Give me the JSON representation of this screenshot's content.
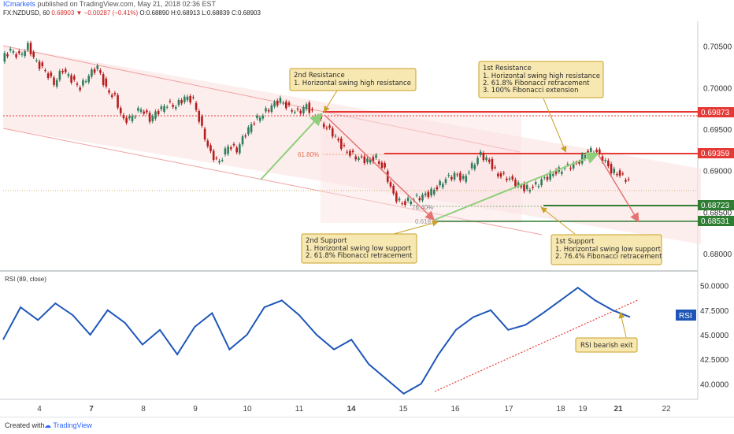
{
  "header": {
    "publisher": "ICmarkets",
    "published_text": "published on TradingView.com, May 21, 2018 02:36 EST",
    "symbol": "FX:NZDUSD, 60",
    "last": "0.68903",
    "change": "−0.00287 (−0.41%)",
    "o": "O:0.68890",
    "h": "H:0.68913",
    "l": "L:0.68839",
    "c": "C:0.68903"
  },
  "footer": {
    "created": "Created with",
    "brand": "TradingView"
  },
  "chart_data": [
    {
      "type": "candlestick",
      "panel": "price",
      "ylim": [
        0.678,
        0.708
      ],
      "y_ticks": [
        "0.70500",
        "0.70000",
        "0.69500",
        "0.69000",
        "0.68500",
        "0.68000"
      ],
      "y_tick_values": [
        0.705,
        0.7,
        0.695,
        0.69,
        0.685,
        0.68
      ],
      "x_ticks": [
        "4",
        "7",
        "8",
        "9",
        "10",
        "11",
        "14",
        "15",
        "16",
        "17",
        "18",
        "19",
        "21",
        "22"
      ],
      "close_path": [
        [
          0,
          0.7035
        ],
        [
          2,
          0.7045
        ],
        [
          4,
          0.7038
        ],
        [
          6,
          0.705
        ],
        [
          8,
          0.703
        ],
        [
          10,
          0.702
        ],
        [
          12,
          0.7005
        ],
        [
          14,
          0.7022
        ],
        [
          16,
          0.701
        ],
        [
          18,
          0.7
        ],
        [
          20,
          0.7015
        ],
        [
          22,
          0.7025
        ],
        [
          24,
          0.6998
        ],
        [
          26,
          0.6988
        ],
        [
          28,
          0.696
        ],
        [
          30,
          0.6965
        ],
        [
          32,
          0.6975
        ],
        [
          34,
          0.6962
        ],
        [
          36,
          0.6972
        ],
        [
          38,
          0.698
        ],
        [
          40,
          0.6978
        ],
        [
          42,
          0.6988
        ],
        [
          44,
          0.6985
        ],
        [
          46,
          0.695
        ],
        [
          48,
          0.692
        ],
        [
          50,
          0.691
        ],
        [
          52,
          0.693
        ],
        [
          54,
          0.6925
        ],
        [
          56,
          0.6945
        ],
        [
          58,
          0.696
        ],
        [
          60,
          0.6968
        ],
        [
          62,
          0.6978
        ],
        [
          64,
          0.6985
        ],
        [
          66,
          0.6975
        ],
        [
          68,
          0.697
        ],
        [
          70,
          0.6978
        ],
        [
          72,
          0.6965
        ],
        [
          74,
          0.6955
        ],
        [
          76,
          0.6945
        ],
        [
          78,
          0.693
        ],
        [
          80,
          0.692
        ],
        [
          82,
          0.6915
        ],
        [
          84,
          0.6912
        ],
        [
          86,
          0.6915
        ],
        [
          88,
          0.69
        ],
        [
          90,
          0.687
        ],
        [
          92,
          0.686
        ],
        [
          94,
          0.6865
        ],
        [
          96,
          0.6868
        ],
        [
          98,
          0.6872
        ],
        [
          100,
          0.688
        ],
        [
          102,
          0.689
        ],
        [
          104,
          0.6895
        ],
        [
          106,
          0.689
        ],
        [
          108,
          0.6905
        ],
        [
          110,
          0.692
        ],
        [
          112,
          0.691
        ],
        [
          114,
          0.6895
        ],
        [
          116,
          0.6892
        ],
        [
          118,
          0.6885
        ],
        [
          120,
          0.6878
        ],
        [
          122,
          0.688
        ],
        [
          124,
          0.6888
        ],
        [
          126,
          0.6895
        ],
        [
          128,
          0.69
        ],
        [
          130,
          0.6905
        ],
        [
          132,
          0.6908
        ],
        [
          134,
          0.692
        ],
        [
          136,
          0.6925
        ],
        [
          138,
          0.6915
        ],
        [
          140,
          0.69
        ],
        [
          142,
          0.6895
        ],
        [
          144,
          0.6888
        ]
      ]
    },
    {
      "type": "line",
      "panel": "rsi",
      "title": "RSI (89, close)",
      "badge": "RSI",
      "ylim": [
        38.5,
        51.5
      ],
      "y_ticks": [
        "50.0000",
        "47.5000",
        "45.0000",
        "42.5000",
        "40.0000"
      ],
      "y_tick_values": [
        50,
        47.5,
        45,
        42.5,
        40
      ],
      "x": [
        0,
        4,
        8,
        12,
        16,
        20,
        24,
        28,
        32,
        36,
        40,
        44,
        48,
        52,
        56,
        60,
        64,
        68,
        72,
        76,
        80,
        84,
        88,
        92,
        96,
        100,
        104,
        108,
        112,
        116,
        120,
        124,
        128,
        132,
        136,
        140,
        144
      ],
      "values": [
        44.5,
        47.8,
        46.5,
        48.2,
        47.0,
        45.0,
        47.5,
        46.2,
        44.0,
        45.5,
        43.0,
        45.8,
        47.2,
        43.5,
        45.0,
        47.8,
        48.5,
        47.0,
        45.0,
        43.5,
        44.5,
        42.0,
        40.5,
        39.0,
        40.0,
        43.0,
        45.5,
        46.8,
        47.5,
        45.5,
        46.0,
        47.2,
        48.5,
        49.8,
        48.5,
        47.5,
        46.8
      ],
      "color": "#1e56b8",
      "annotation": "RSI bearish exit"
    }
  ],
  "levels": {
    "resistance_2": "0.69873",
    "resistance_1": "0.69359",
    "support_1": "0.68723",
    "support_2": "0.68531",
    "fib_618": "61.80%",
    "fib_764": "76.40%",
    "fib_618_low": "0.618"
  },
  "annotations": {
    "r2_title": "2nd Resistance",
    "r2_line1": "1. Horizontal swing high resistance",
    "r1_title": "1st Resistance",
    "r1_line1": "1. Horizontal swing high resistance",
    "r1_line2": "2. 61.8% Fibonacci retracement",
    "r1_line3": "3. 100% Fibonacci extension",
    "s2_title": "2nd Support",
    "s2_line1": "1. Horizontal swing low support",
    "s2_line2": "2. 61.8% Fibonacci retracement",
    "s1_title": "1st Support",
    "s1_line1": "1. Horizontal swing low support",
    "s1_line2": "2. 76.4% Fibonacci retracement"
  },
  "colors": {
    "up": "#2e7d5b",
    "down": "#b71c1c",
    "resistance": "#e53935",
    "support": "#2e7d32",
    "channel_fill": "#fbe0e0",
    "rsi": "#1e56b8",
    "green_arrow": "#8fce7a",
    "red_arrow": "#e57373",
    "badge_bg": "#1e56b8"
  }
}
